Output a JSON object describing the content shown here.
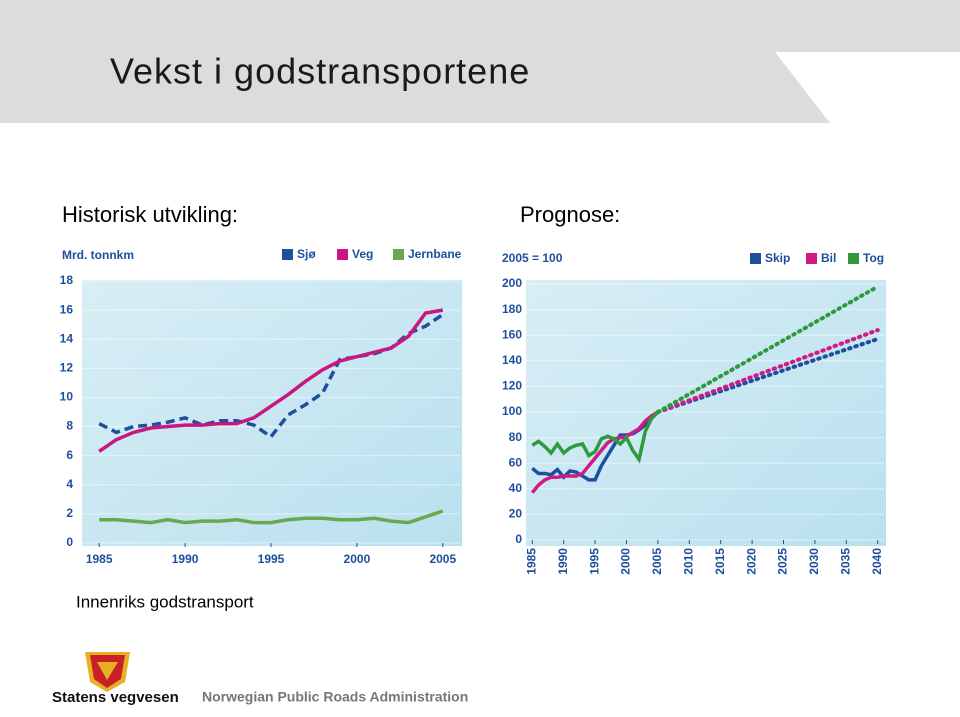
{
  "slide_title": "Vekst i godstransportene",
  "caption": "Innenriks godstransport",
  "footer": {
    "org": "Statens vegvesen",
    "org_en": "Norwegian Public Roads Administration"
  },
  "chart_data": [
    {
      "type": "line",
      "title": "Historisk utvikling:",
      "ylabel": "Mrd. tonnkm",
      "x": [
        1985,
        1986,
        1987,
        1988,
        1989,
        1990,
        1991,
        1992,
        1993,
        1994,
        1995,
        1996,
        1997,
        1998,
        1999,
        2000,
        2001,
        2002,
        2003,
        2004,
        2005
      ],
      "xlim": [
        1984,
        2006
      ],
      "xticks": [
        1985,
        1990,
        1995,
        2000,
        2005
      ],
      "ylim": [
        0,
        18
      ],
      "yticks": [
        0,
        2,
        4,
        6,
        8,
        10,
        12,
        14,
        16,
        18
      ],
      "series": [
        {
          "name": "Sjø",
          "color": "#1e4f9c",
          "style": "dashed",
          "values": [
            8.2,
            7.6,
            8.0,
            8.1,
            8.3,
            8.6,
            8.1,
            8.4,
            8.4,
            8.1,
            7.3,
            8.8,
            9.5,
            10.3,
            12.6,
            12.8,
            13.0,
            13.4,
            14.4,
            14.9,
            15.7
          ]
        },
        {
          "name": "Veg",
          "color": "#c8177f",
          "style": "solid",
          "values": [
            6.3,
            7.1,
            7.6,
            7.9,
            8.0,
            8.1,
            8.1,
            8.2,
            8.2,
            8.6,
            9.4,
            10.2,
            11.1,
            11.9,
            12.5,
            12.8,
            13.1,
            13.4,
            14.2,
            15.8,
            16.0
          ]
        },
        {
          "name": "Jernbane",
          "color": "#6aa84f",
          "style": "solid",
          "values": [
            1.6,
            1.6,
            1.5,
            1.4,
            1.6,
            1.4,
            1.5,
            1.5,
            1.6,
            1.4,
            1.4,
            1.6,
            1.7,
            1.7,
            1.6,
            1.6,
            1.7,
            1.5,
            1.4,
            1.8,
            2.2
          ]
        }
      ]
    },
    {
      "type": "line",
      "title": "Prognose:",
      "ylabel": "2005 = 100",
      "x": [
        1985,
        1986,
        1987,
        1988,
        1989,
        1990,
        1991,
        1992,
        1993,
        1994,
        1995,
        1996,
        1997,
        1998,
        1999,
        2000,
        2001,
        2002,
        2003,
        2004,
        2005,
        2040
      ],
      "forecast_from": 2005,
      "xlim": [
        1984,
        2041
      ],
      "xticks": [
        1985,
        1990,
        1995,
        2000,
        2005,
        2010,
        2015,
        2020,
        2025,
        2030,
        2035,
        2040
      ],
      "ylim": [
        0,
        200
      ],
      "yticks": [
        0,
        20,
        40,
        60,
        80,
        100,
        120,
        140,
        160,
        180,
        200
      ],
      "series": [
        {
          "name": "Skip",
          "color": "#1e4f9c",
          "style": "solid",
          "values": [
            56,
            52,
            52,
            51,
            55,
            49,
            54,
            53,
            50,
            47,
            47,
            58,
            66,
            74,
            82,
            82,
            83,
            86,
            90,
            95,
            100,
            157
          ]
        },
        {
          "name": "Bil",
          "color": "#d11a86",
          "style": "solid",
          "values": [
            37,
            43,
            47,
            49,
            49,
            50,
            50,
            50,
            52,
            58,
            64,
            70,
            76,
            79,
            80,
            81,
            84,
            87,
            93,
            97,
            100,
            164
          ]
        },
        {
          "name": "Tog",
          "color": "#2f9a3c",
          "style": "solid",
          "values": [
            74,
            77,
            73,
            68,
            75,
            68,
            72,
            74,
            75,
            66,
            69,
            79,
            81,
            79,
            75,
            80,
            70,
            63,
            85,
            95,
            100,
            198
          ]
        }
      ]
    }
  ]
}
